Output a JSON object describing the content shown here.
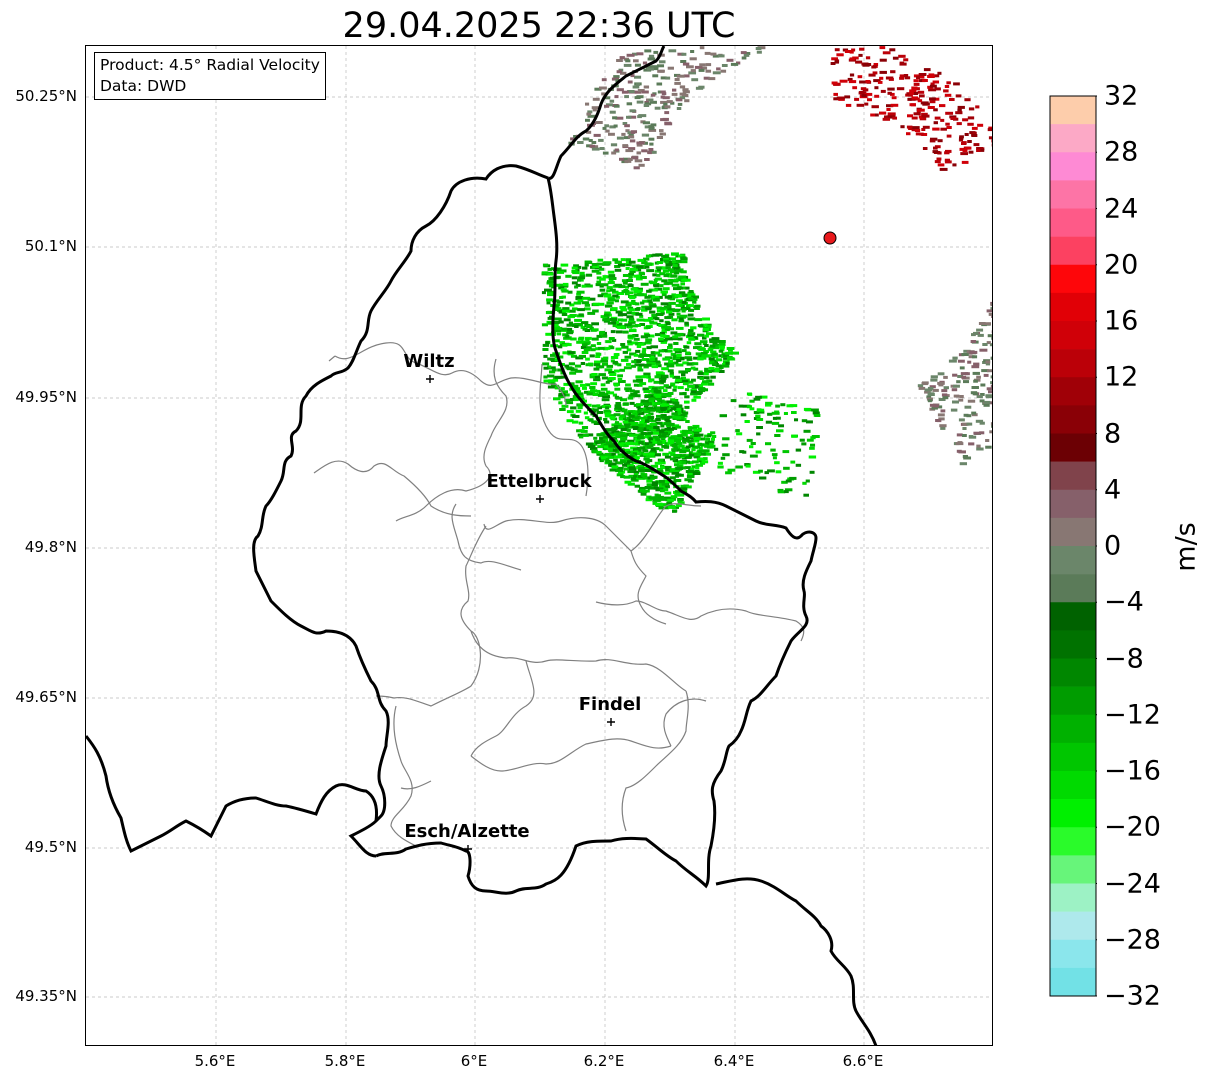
{
  "map": {
    "title": "29.04.2025 22:36 UTC",
    "info": {
      "product_line": "Product: 4.5° Radial Velocity",
      "data_line": "Data: DWD"
    },
    "latitude_labels": [
      "50.25°N",
      "50.1°N",
      "49.95°N",
      "49.8°N",
      "49.65°N",
      "49.5°N",
      "49.35°N"
    ],
    "longitude_labels": [
      "5.6°E",
      "5.8°E",
      "6°E",
      "6.2°E",
      "6.4°E",
      "6.6°E"
    ],
    "cities": [
      {
        "name": "Wiltz"
      },
      {
        "name": "Ettelbruck"
      },
      {
        "name": "Findel"
      },
      {
        "name": "Esch/Alzette"
      }
    ],
    "radar_marker": {
      "color": "#e8191c"
    }
  },
  "colorbar": {
    "unit": "m/s",
    "range": [
      -32,
      32
    ],
    "tick_labels": [
      "32",
      "28",
      "24",
      "20",
      "16",
      "12",
      "8",
      "4",
      "0",
      "−4",
      "−8",
      "−12",
      "−16",
      "−20",
      "−24",
      "−28",
      "−32"
    ],
    "colors_top_to_bottom": [
      "#fdcdab",
      "#fca9c6",
      "#fe8ad4",
      "#fd74a6",
      "#fe5a88",
      "#fc4161",
      "#fe060a",
      "#e10006",
      "#d00008",
      "#bb0008",
      "#a00007",
      "#8a0006",
      "#6c0004",
      "#80434b",
      "#86606a",
      "#887773",
      "#6b866a",
      "#5b7b59",
      "#006200",
      "#007200",
      "#008700",
      "#009c00",
      "#00b100",
      "#00c600",
      "#00da00",
      "#00f000",
      "#2afb2a",
      "#67f57a",
      "#9df2c5",
      "#aee9ec",
      "#8be6ec",
      "#72e1e6"
    ]
  }
}
